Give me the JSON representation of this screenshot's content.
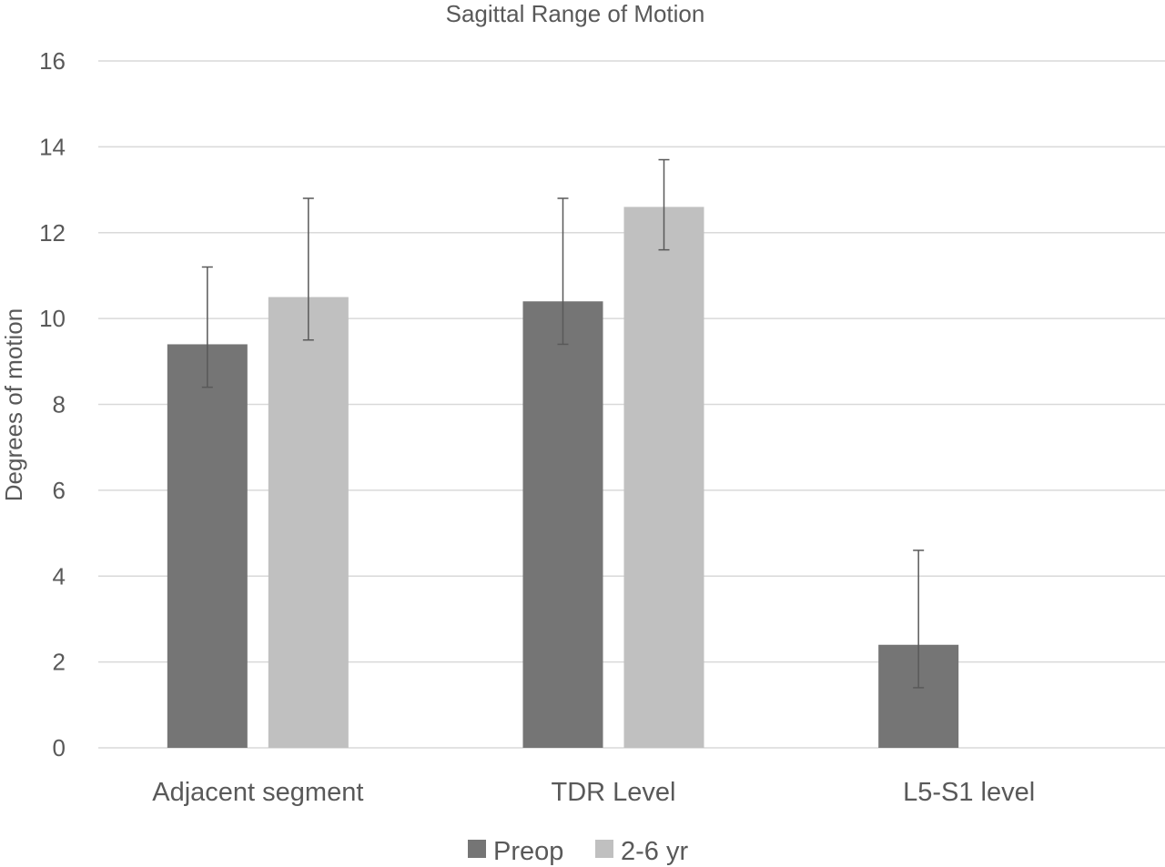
{
  "chart_data": {
    "type": "bar",
    "title": "Sagittal Range of Motion",
    "xlabel": "",
    "ylabel": "Degrees of motion",
    "ylim": [
      0,
      16
    ],
    "yticks": [
      0,
      2,
      4,
      6,
      8,
      10,
      12,
      14,
      16
    ],
    "grid": true,
    "legend_position": "bottom",
    "categories": [
      "Adjacent segment",
      "TDR Level",
      "L5-S1 level"
    ],
    "series": [
      {
        "name": "Preop",
        "color": "#757575",
        "values": [
          9.4,
          10.4,
          2.4
        ],
        "error_low": [
          8.4,
          9.4,
          1.4
        ],
        "error_high": [
          11.2,
          12.8,
          4.6
        ]
      },
      {
        "name": "2-6 yr",
        "color": "#c0c0c0",
        "values": [
          10.5,
          12.6,
          0
        ],
        "error_low": [
          9.5,
          11.6,
          null
        ],
        "error_high": [
          12.8,
          13.7,
          null
        ]
      }
    ]
  }
}
